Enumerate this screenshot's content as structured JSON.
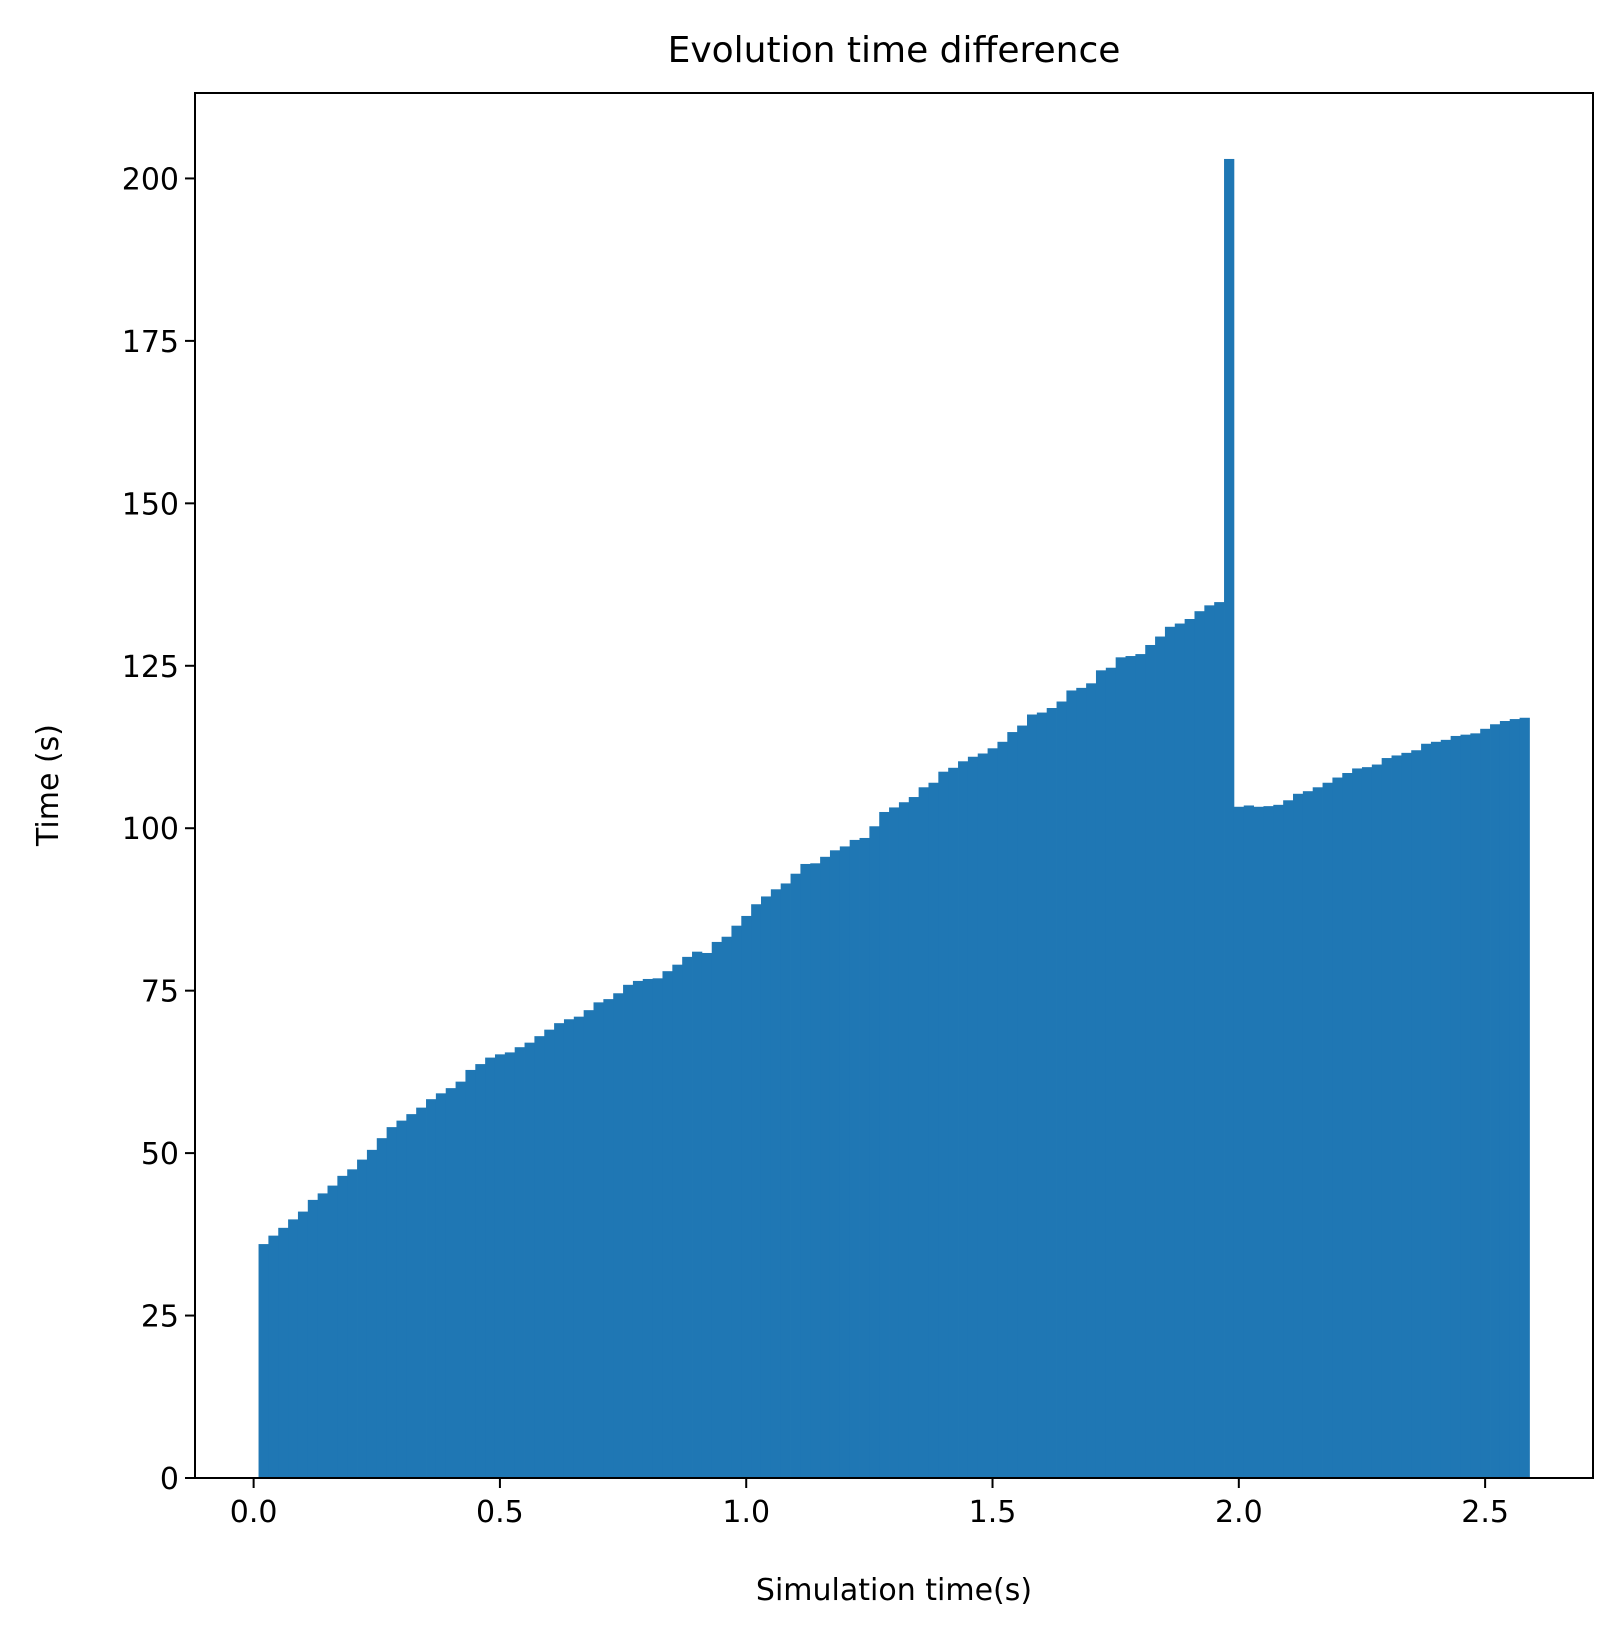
{
  "chart_data": {
    "type": "bar",
    "title": "Evolution time difference",
    "x_label": "Simulation time(s)",
    "y_label": "Time (s)",
    "color": "#1f77b4",
    "x": [
      0.02,
      0.04,
      0.06,
      0.08,
      0.1,
      0.12,
      0.14,
      0.16,
      0.18,
      0.2,
      0.22,
      0.24,
      0.26,
      0.28,
      0.3,
      0.32,
      0.34,
      0.36,
      0.38,
      0.4,
      0.42,
      0.44,
      0.46,
      0.48,
      0.5,
      0.52,
      0.54,
      0.56,
      0.58,
      0.6,
      0.62,
      0.64,
      0.66,
      0.68,
      0.7,
      0.72,
      0.74,
      0.76,
      0.78,
      0.8,
      0.82,
      0.84,
      0.86,
      0.88,
      0.9,
      0.92,
      0.94,
      0.96,
      0.98,
      1.0,
      1.02,
      1.04,
      1.06,
      1.08,
      1.1,
      1.12,
      1.14,
      1.16,
      1.18,
      1.2,
      1.22,
      1.24,
      1.26,
      1.28,
      1.3,
      1.32,
      1.34,
      1.36,
      1.38,
      1.4,
      1.42,
      1.44,
      1.46,
      1.48,
      1.5,
      1.52,
      1.54,
      1.56,
      1.58,
      1.6,
      1.62,
      1.64,
      1.66,
      1.68,
      1.7,
      1.72,
      1.74,
      1.76,
      1.78,
      1.8,
      1.82,
      1.84,
      1.86,
      1.88,
      1.9,
      1.92,
      1.94,
      1.96,
      1.98,
      2.0,
      2.02,
      2.04,
      2.06,
      2.08,
      2.1,
      2.12,
      2.14,
      2.16,
      2.18,
      2.2,
      2.22,
      2.24,
      2.26,
      2.28,
      2.3,
      2.32,
      2.34,
      2.36,
      2.38,
      2.4,
      2.42,
      2.44,
      2.46,
      2.48,
      2.5,
      2.52,
      2.54,
      2.56,
      2.58
    ],
    "values": [
      36,
      37.3,
      38.5,
      39.8,
      41,
      42.8,
      43.8,
      45,
      46.5,
      47.5,
      49,
      50.5,
      52.3,
      54,
      55,
      56,
      57,
      58.3,
      59.2,
      60,
      61,
      62.8,
      63.7,
      64.7,
      65.2,
      65.5,
      66.3,
      67,
      68,
      69,
      70,
      70.6,
      71,
      72,
      73.2,
      73.7,
      74.6,
      75.9,
      76.5,
      76.8,
      76.9,
      78,
      79,
      80.2,
      81,
      80.8,
      82.5,
      83.3,
      85,
      86.5,
      88.3,
      89.5,
      90.6,
      91.5,
      93,
      94.5,
      94.6,
      95.6,
      96.6,
      97.2,
      98.2,
      98.5,
      100.3,
      102.5,
      103.2,
      104,
      104.8,
      106.3,
      107,
      108.7,
      109.3,
      110.3,
      111,
      111.5,
      112.3,
      113.3,
      114.8,
      115.8,
      117.5,
      117.8,
      118.5,
      119.5,
      121.2,
      121.6,
      122.3,
      124.3,
      124.7,
      126.3,
      126.5,
      126.8,
      128.2,
      129.5,
      131,
      131.5,
      132.2,
      133.4,
      134.3,
      134.8,
      203,
      103.3,
      103.5,
      103.3,
      103.4,
      103.6,
      104.3,
      105.3,
      105.7,
      106.3,
      107,
      107.8,
      108.5,
      109.2,
      109.4,
      109.8,
      110.8,
      111.2,
      111.6,
      112,
      113,
      113.3,
      113.6,
      114.2,
      114.4,
      114.6,
      115.3,
      116,
      116.5,
      116.8,
      117
    ],
    "xlim": [
      -0.119,
      2.719
    ],
    "xticks": [
      {
        "value": 0,
        "label": "0.0"
      },
      0.5,
      {
        "value": 1,
        "label": "1.0"
      },
      1.5,
      {
        "value": 2,
        "label": "2.0"
      },
      2.5
    ],
    "ylim": [
      0,
      213.15
    ],
    "yticks": [
      0,
      25,
      50,
      75,
      100,
      125,
      150,
      175,
      200
    ]
  }
}
